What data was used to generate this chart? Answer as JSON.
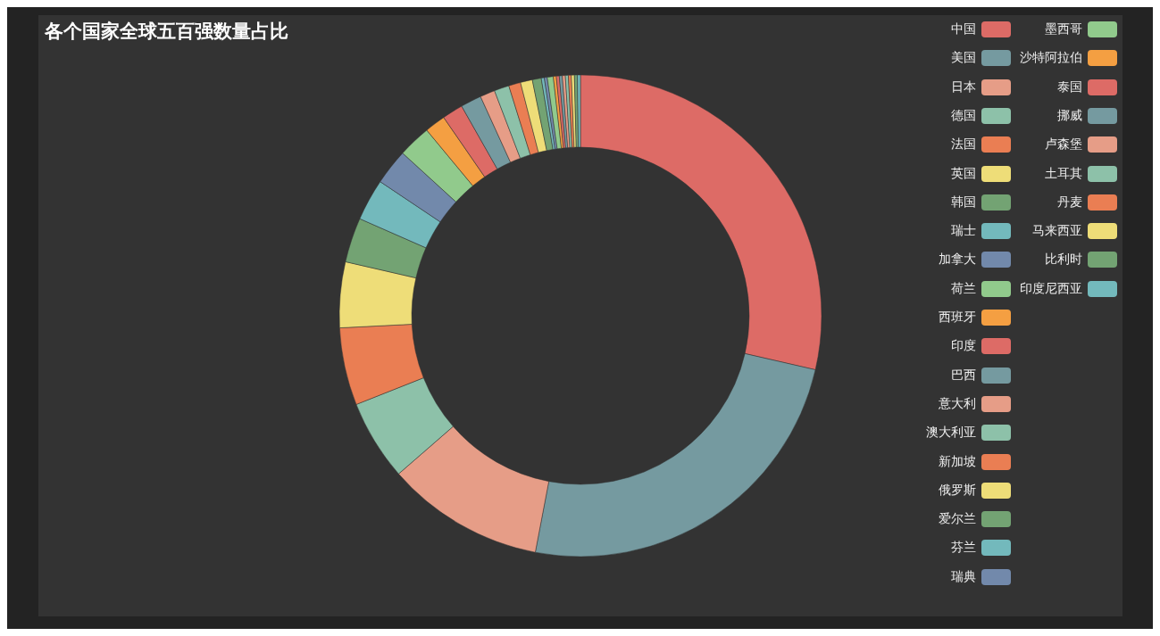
{
  "chart_data": {
    "type": "donut",
    "title": "各个国家全球五百强数量占比",
    "categories": [
      "中国",
      "美国",
      "日本",
      "德国",
      "法国",
      "英国",
      "韩国",
      "瑞士",
      "加拿大",
      "荷兰",
      "西班牙",
      "印度",
      "巴西",
      "意大利",
      "澳大利亚",
      "新加坡",
      "俄罗斯",
      "爱尔兰",
      "芬兰",
      "瑞典",
      "墨西哥",
      "沙特阿拉伯",
      "泰国",
      "挪威",
      "卢森堡",
      "土耳其",
      "丹麦",
      "马来西亚",
      "比利时",
      "印度尼西亚"
    ],
    "values": [
      28.6,
      24.4,
      10.6,
      5.4,
      5.2,
      4.4,
      3,
      2.8,
      2.4,
      2.2,
      1.4,
      1.4,
      1.4,
      1,
      1,
      0.8,
      0.8,
      0.6,
      0.2,
      0.2,
      0.4,
      0.2,
      0.2,
      0.2,
      0.2,
      0.2,
      0.2,
      0.2,
      0.2,
      0.2
    ],
    "colors": [
      "#dd6b66",
      "#759aa0",
      "#e69d87",
      "#8dc1a9",
      "#ea7e53",
      "#eedd78",
      "#73a373",
      "#73b9bc",
      "#7289ab",
      "#91ca8c",
      "#f49f42",
      "#dd6b66",
      "#759aa0",
      "#e69d87",
      "#8dc1a9",
      "#ea7e53",
      "#eedd78",
      "#73a373",
      "#73b9bc",
      "#7289ab",
      "#91ca8c",
      "#f49f42",
      "#dd6b66",
      "#759aa0",
      "#e69d87",
      "#8dc1a9",
      "#ea7e53",
      "#eedd78",
      "#73a373",
      "#73b9bc"
    ],
    "legend": "top right"
  }
}
